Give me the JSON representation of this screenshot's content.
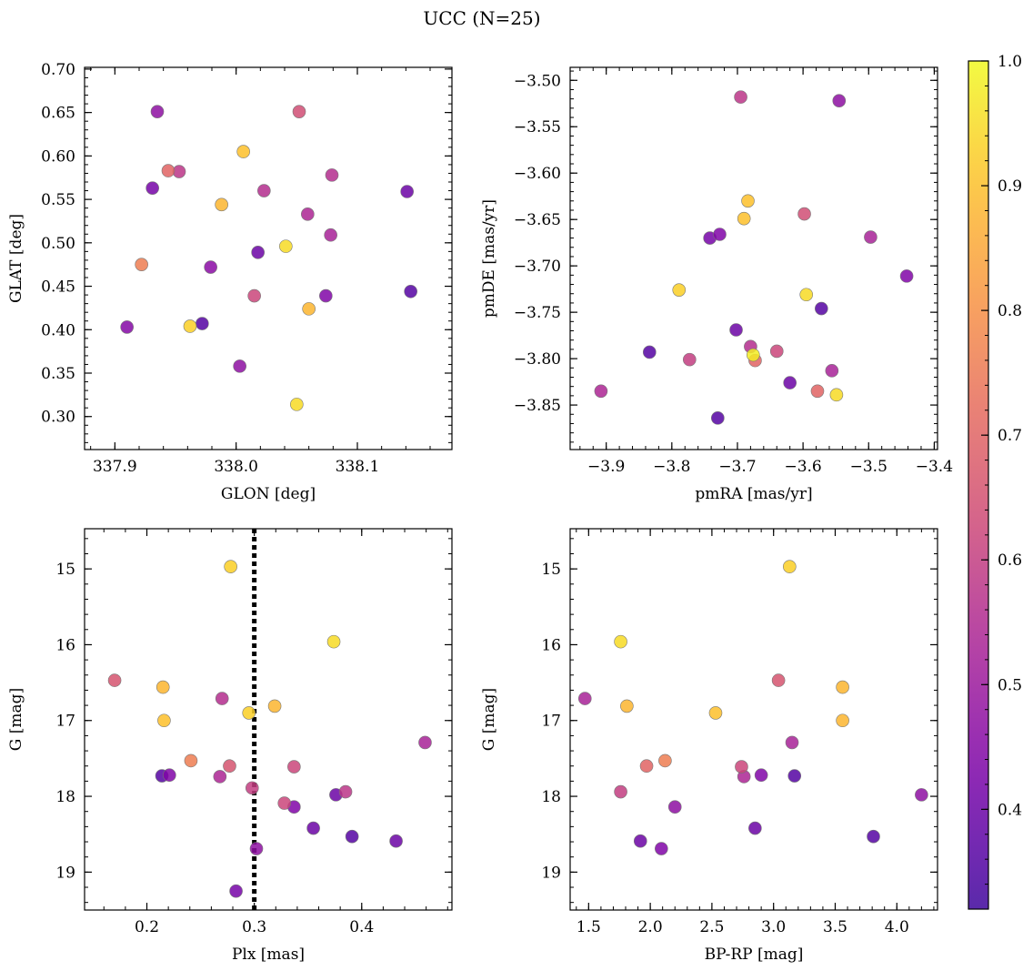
{
  "figure": {
    "title": "UCC (N=25)"
  },
  "colorbar": {
    "min": 0.32,
    "max": 1.0,
    "ticks": [
      "0.4",
      "0.5",
      "0.6",
      "0.7",
      "0.8",
      "0.9",
      "1.0"
    ],
    "tick_values": [
      0.4,
      0.5,
      0.6,
      0.7,
      0.8,
      0.9,
      1.0
    ],
    "colormap": "plasma"
  },
  "chart_data": [
    {
      "type": "scatter",
      "xlabel": "GLON [deg]",
      "ylabel": "GLAT [deg]",
      "xlim": [
        337.875,
        338.178
      ],
      "ylim": [
        0.262,
        0.702
      ],
      "x_ticks": [
        337.9,
        338.0,
        338.1
      ],
      "x_tick_labels": [
        "337.9",
        "338.0",
        "338.1"
      ],
      "y_ticks": [
        0.3,
        0.35,
        0.4,
        0.45,
        0.5,
        0.55,
        0.6,
        0.65,
        0.7
      ],
      "y_tick_labels": [
        "0.30",
        "0.35",
        "0.40",
        "0.45",
        "0.50",
        "0.55",
        "0.60",
        "0.65",
        "0.70"
      ],
      "points": [
        {
          "x": 337.935,
          "y": 0.651,
          "c": 0.47
        },
        {
          "x": 338.052,
          "y": 0.651,
          "c": 0.64
        },
        {
          "x": 338.006,
          "y": 0.605,
          "c": 0.9
        },
        {
          "x": 337.944,
          "y": 0.583,
          "c": 0.7
        },
        {
          "x": 337.953,
          "y": 0.582,
          "c": 0.58
        },
        {
          "x": 338.079,
          "y": 0.578,
          "c": 0.56
        },
        {
          "x": 337.931,
          "y": 0.563,
          "c": 0.42
        },
        {
          "x": 338.023,
          "y": 0.56,
          "c": 0.56
        },
        {
          "x": 338.141,
          "y": 0.559,
          "c": 0.4
        },
        {
          "x": 337.988,
          "y": 0.544,
          "c": 0.88
        },
        {
          "x": 338.059,
          "y": 0.533,
          "c": 0.54
        },
        {
          "x": 338.078,
          "y": 0.509,
          "c": 0.53
        },
        {
          "x": 338.041,
          "y": 0.496,
          "c": 0.95
        },
        {
          "x": 338.018,
          "y": 0.489,
          "c": 0.4
        },
        {
          "x": 337.922,
          "y": 0.475,
          "c": 0.76
        },
        {
          "x": 337.979,
          "y": 0.472,
          "c": 0.46
        },
        {
          "x": 338.015,
          "y": 0.439,
          "c": 0.62
        },
        {
          "x": 338.074,
          "y": 0.439,
          "c": 0.44
        },
        {
          "x": 338.144,
          "y": 0.444,
          "c": 0.36
        },
        {
          "x": 338.06,
          "y": 0.424,
          "c": 0.88
        },
        {
          "x": 337.91,
          "y": 0.403,
          "c": 0.45
        },
        {
          "x": 337.962,
          "y": 0.404,
          "c": 0.93
        },
        {
          "x": 337.972,
          "y": 0.407,
          "c": 0.36
        },
        {
          "x": 338.003,
          "y": 0.358,
          "c": 0.47
        },
        {
          "x": 338.05,
          "y": 0.314,
          "c": 0.95
        }
      ]
    },
    {
      "type": "scatter",
      "xlabel": "pmRA [mas/yr]",
      "ylabel": "pmDE [mas/yr]",
      "xlim": [
        -3.955,
        -3.395
      ],
      "ylim": [
        -3.898,
        -3.486
      ],
      "x_ticks": [
        -3.9,
        -3.8,
        -3.7,
        -3.6,
        -3.5,
        -3.4
      ],
      "x_tick_labels": [
        "−3.9",
        "−3.8",
        "−3.7",
        "−3.6",
        "−3.5",
        "−3.4"
      ],
      "y_ticks": [
        -3.85,
        -3.8,
        -3.75,
        -3.7,
        -3.65,
        -3.6,
        -3.55,
        -3.5
      ],
      "y_tick_labels": [
        "−3.85",
        "−3.80",
        "−3.75",
        "−3.70",
        "−3.65",
        "−3.60",
        "−3.55",
        "−3.50"
      ],
      "points": [
        {
          "x": -3.695,
          "y": -3.518,
          "c": 0.58
        },
        {
          "x": -3.545,
          "y": -3.522,
          "c": 0.47
        },
        {
          "x": -3.684,
          "y": -3.63,
          "c": 0.9
        },
        {
          "x": -3.69,
          "y": -3.649,
          "c": 0.9
        },
        {
          "x": -3.598,
          "y": -3.644,
          "c": 0.64
        },
        {
          "x": -3.742,
          "y": -3.67,
          "c": 0.42
        },
        {
          "x": -3.727,
          "y": -3.666,
          "c": 0.44
        },
        {
          "x": -3.497,
          "y": -3.669,
          "c": 0.53
        },
        {
          "x": -3.442,
          "y": -3.711,
          "c": 0.44
        },
        {
          "x": -3.789,
          "y": -3.726,
          "c": 0.93
        },
        {
          "x": -3.595,
          "y": -3.731,
          "c": 0.95
        },
        {
          "x": -3.572,
          "y": -3.746,
          "c": 0.36
        },
        {
          "x": -3.702,
          "y": -3.769,
          "c": 0.4
        },
        {
          "x": -3.68,
          "y": -3.787,
          "c": 0.56
        },
        {
          "x": -3.64,
          "y": -3.792,
          "c": 0.62
        },
        {
          "x": -3.834,
          "y": -3.793,
          "c": 0.36
        },
        {
          "x": -3.676,
          "y": -3.796,
          "c": 0.98
        },
        {
          "x": -3.673,
          "y": -3.802,
          "c": 0.7
        },
        {
          "x": -3.773,
          "y": -3.801,
          "c": 0.6
        },
        {
          "x": -3.556,
          "y": -3.813,
          "c": 0.53
        },
        {
          "x": -3.62,
          "y": -3.826,
          "c": 0.4
        },
        {
          "x": -3.578,
          "y": -3.835,
          "c": 0.7
        },
        {
          "x": -3.908,
          "y": -3.835,
          "c": 0.54
        },
        {
          "x": -3.549,
          "y": -3.839,
          "c": 0.95
        },
        {
          "x": -3.73,
          "y": -3.864,
          "c": 0.36
        }
      ]
    },
    {
      "type": "scatter",
      "xlabel": "Plx [mas]",
      "ylabel": "G [mag]",
      "xlim": [
        0.142,
        0.484
      ],
      "ylim": [
        19.5,
        14.47
      ],
      "y_inverted": true,
      "vline_x": 0.3,
      "x_ticks": [
        0.2,
        0.3,
        0.4
      ],
      "x_tick_labels": [
        "0.2",
        "0.3",
        "0.4"
      ],
      "y_ticks": [
        15,
        16,
        17,
        18,
        19
      ],
      "y_tick_labels": [
        "15",
        "16",
        "17",
        "18",
        "19"
      ],
      "points": [
        {
          "x": 0.278,
          "y": 14.97,
          "c": 0.93
        },
        {
          "x": 0.374,
          "y": 15.96,
          "c": 0.95
        },
        {
          "x": 0.17,
          "y": 16.47,
          "c": 0.66
        },
        {
          "x": 0.215,
          "y": 16.56,
          "c": 0.88
        },
        {
          "x": 0.27,
          "y": 16.71,
          "c": 0.56
        },
        {
          "x": 0.319,
          "y": 16.81,
          "c": 0.88
        },
        {
          "x": 0.295,
          "y": 16.9,
          "c": 0.93
        },
        {
          "x": 0.216,
          "y": 17.0,
          "c": 0.9
        },
        {
          "x": 0.459,
          "y": 17.29,
          "c": 0.53
        },
        {
          "x": 0.241,
          "y": 17.53,
          "c": 0.76
        },
        {
          "x": 0.277,
          "y": 17.6,
          "c": 0.66
        },
        {
          "x": 0.337,
          "y": 17.61,
          "c": 0.62
        },
        {
          "x": 0.214,
          "y": 17.73,
          "c": 0.36
        },
        {
          "x": 0.221,
          "y": 17.72,
          "c": 0.44
        },
        {
          "x": 0.268,
          "y": 17.74,
          "c": 0.54
        },
        {
          "x": 0.298,
          "y": 17.89,
          "c": 0.6
        },
        {
          "x": 0.385,
          "y": 17.94,
          "c": 0.58
        },
        {
          "x": 0.376,
          "y": 17.98,
          "c": 0.4
        },
        {
          "x": 0.328,
          "y": 18.09,
          "c": 0.62
        },
        {
          "x": 0.337,
          "y": 18.14,
          "c": 0.44
        },
        {
          "x": 0.355,
          "y": 18.42,
          "c": 0.4
        },
        {
          "x": 0.391,
          "y": 18.53,
          "c": 0.36
        },
        {
          "x": 0.432,
          "y": 18.59,
          "c": 0.4
        },
        {
          "x": 0.302,
          "y": 18.69,
          "c": 0.47
        },
        {
          "x": 0.283,
          "y": 19.25,
          "c": 0.42
        }
      ]
    },
    {
      "type": "scatter",
      "xlabel": "BP-RP [mag]",
      "ylabel": "G [mag]",
      "xlim": [
        1.35,
        4.33
      ],
      "ylim": [
        19.5,
        14.47
      ],
      "y_inverted": true,
      "x_ticks": [
        1.5,
        2.0,
        2.5,
        3.0,
        3.5,
        4.0
      ],
      "x_tick_labels": [
        "1.5",
        "2.0",
        "2.5",
        "3.0",
        "3.5",
        "4.0"
      ],
      "y_ticks": [
        15,
        16,
        17,
        18,
        19
      ],
      "y_tick_labels": [
        "15",
        "16",
        "17",
        "18",
        "19"
      ],
      "points": [
        {
          "x": 3.13,
          "y": 14.97,
          "c": 0.93
        },
        {
          "x": 1.76,
          "y": 15.96,
          "c": 0.95
        },
        {
          "x": 3.04,
          "y": 16.47,
          "c": 0.66
        },
        {
          "x": 3.56,
          "y": 16.56,
          "c": 0.88
        },
        {
          "x": 1.47,
          "y": 16.71,
          "c": 0.53
        },
        {
          "x": 1.81,
          "y": 16.81,
          "c": 0.88
        },
        {
          "x": 2.53,
          "y": 16.9,
          "c": 0.9
        },
        {
          "x": 3.56,
          "y": 17.0,
          "c": 0.88
        },
        {
          "x": 3.15,
          "y": 17.29,
          "c": 0.53
        },
        {
          "x": 2.12,
          "y": 17.53,
          "c": 0.76
        },
        {
          "x": 1.97,
          "y": 17.6,
          "c": 0.7
        },
        {
          "x": 2.74,
          "y": 17.61,
          "c": 0.62
        },
        {
          "x": 3.17,
          "y": 17.73,
          "c": 0.36
        },
        {
          "x": 2.9,
          "y": 17.72,
          "c": 0.44
        },
        {
          "x": 2.76,
          "y": 17.74,
          "c": 0.54
        },
        {
          "x": 1.76,
          "y": 17.94,
          "c": 0.6
        },
        {
          "x": 4.2,
          "y": 17.98,
          "c": 0.47
        },
        {
          "x": 2.2,
          "y": 18.14,
          "c": 0.47
        },
        {
          "x": 2.85,
          "y": 18.42,
          "c": 0.4
        },
        {
          "x": 3.81,
          "y": 18.53,
          "c": 0.36
        },
        {
          "x": 1.92,
          "y": 18.59,
          "c": 0.4
        },
        {
          "x": 2.09,
          "y": 18.69,
          "c": 0.44
        }
      ]
    }
  ]
}
